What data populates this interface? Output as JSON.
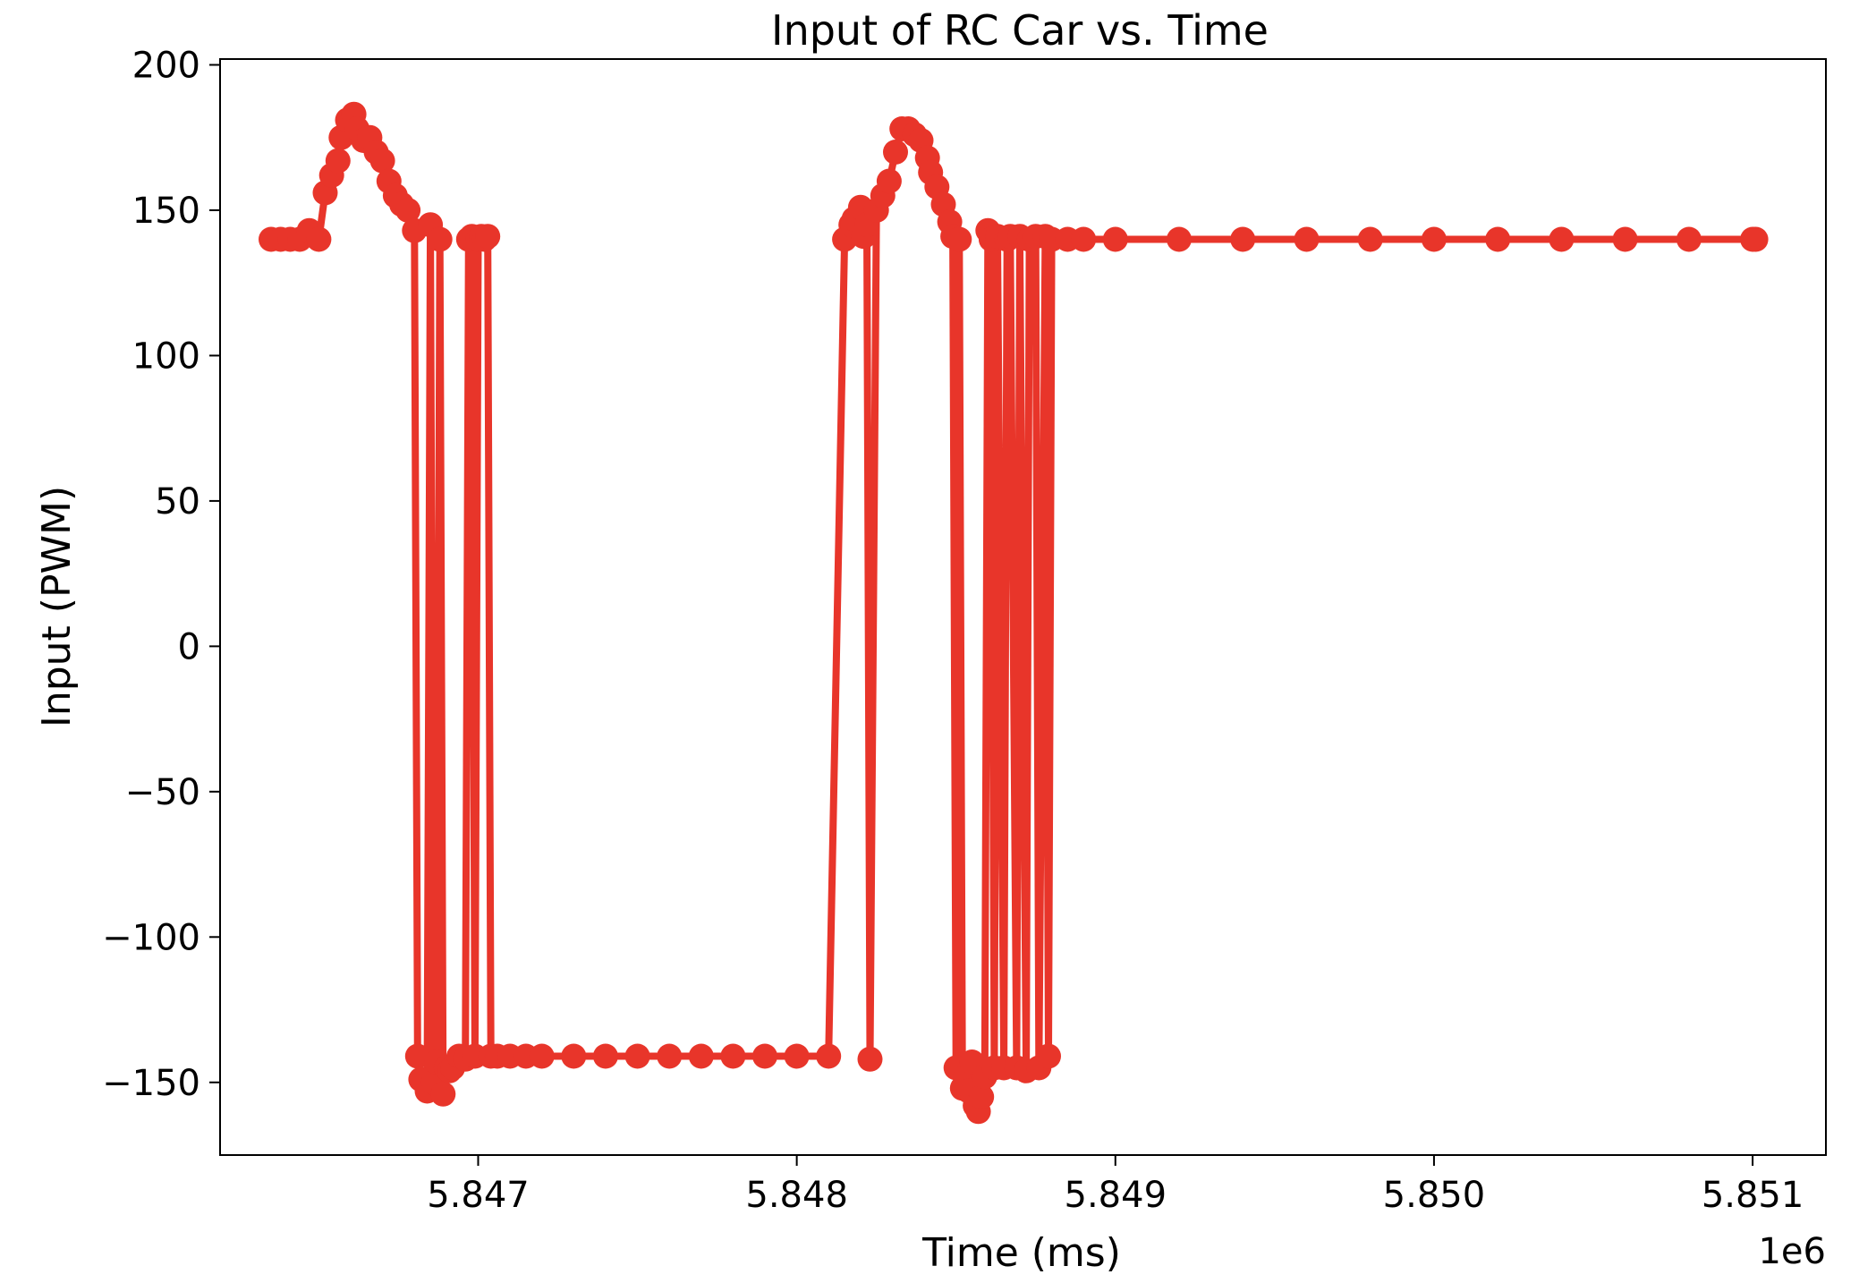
{
  "chart_data": {
    "type": "line",
    "title": "Input of RC Car vs. Time",
    "xlabel": "Time (ms)",
    "ylabel": "Input (PWM)",
    "x_offset_label": "1e6",
    "xlim": [
      5846190,
      5851230
    ],
    "ylim": [
      -175,
      202
    ],
    "x_ticks": [
      {
        "value": 5847000,
        "label": "5.847"
      },
      {
        "value": 5848000,
        "label": "5.848"
      },
      {
        "value": 5849000,
        "label": "5.849"
      },
      {
        "value": 5850000,
        "label": "5.850"
      },
      {
        "value": 5851000,
        "label": "5.851"
      }
    ],
    "y_ticks": [
      {
        "value": 200,
        "label": "200"
      },
      {
        "value": 150,
        "label": "150"
      },
      {
        "value": 100,
        "label": "100"
      },
      {
        "value": 50,
        "label": "50"
      },
      {
        "value": 0,
        "label": "0"
      },
      {
        "value": -50,
        "label": "−50"
      },
      {
        "value": -100,
        "label": "−100"
      },
      {
        "value": -150,
        "label": "−150"
      }
    ],
    "grid": false,
    "legend": "none",
    "series": [
      {
        "color": "#e8352a",
        "marker": "circle",
        "x": [
          5846350,
          5846380,
          5846410,
          5846440,
          5846470,
          5846500,
          5846520,
          5846540,
          5846560,
          5846570,
          5846590,
          5846610,
          5846620,
          5846640,
          5846660,
          5846680,
          5846700,
          5846720,
          5846740,
          5846760,
          5846780,
          5846800,
          5846810,
          5846820,
          5846840,
          5846850,
          5846860,
          5846870,
          5846880,
          5846890,
          5846900,
          5846910,
          5846920,
          5846940,
          5846960,
          5846970,
          5846980,
          5846990,
          5847000,
          5847010,
          5847020,
          5847030,
          5847040,
          5847060,
          5847100,
          5847150,
          5847200,
          5847300,
          5847400,
          5847500,
          5847600,
          5847700,
          5847800,
          5847900,
          5848000,
          5848100,
          5848150,
          5848170,
          5848180,
          5848200,
          5848210,
          5848220,
          5848230,
          5848250,
          5848270,
          5848290,
          5848310,
          5848330,
          5848350,
          5848370,
          5848390,
          5848410,
          5848420,
          5848440,
          5848460,
          5848480,
          5848490,
          5848500,
          5848510,
          5848520,
          5848530,
          5848540,
          5848550,
          5848560,
          5848570,
          5848580,
          5848590,
          5848600,
          5848610,
          5848620,
          5848630,
          5848650,
          5848660,
          5848670,
          5848690,
          5848700,
          5848720,
          5848730,
          5848750,
          5848760,
          5848780,
          5848790,
          5848800,
          5848850,
          5848900,
          5849000,
          5849200,
          5849400,
          5849600,
          5849800,
          5850000,
          5850200,
          5850400,
          5850600,
          5850800,
          5851000,
          5851010
        ],
        "y": [
          140,
          140,
          140,
          140,
          143,
          140,
          156,
          162,
          167,
          175,
          181,
          183,
          178,
          174,
          175,
          170,
          167,
          160,
          155,
          152,
          150,
          143,
          -141,
          -149,
          -153,
          145,
          -150,
          -143,
          140,
          -154,
          -145,
          -146,
          -145,
          -141,
          -142,
          140,
          141,
          -141,
          140,
          141,
          140,
          141,
          -141,
          -141,
          -141,
          -141,
          -141,
          -141,
          -141,
          -141,
          -141,
          -141,
          -141,
          -141,
          -141,
          -141,
          140,
          145,
          147,
          151,
          141,
          145,
          -142,
          150,
          155,
          160,
          170,
          178,
          178,
          176,
          174,
          168,
          163,
          158,
          152,
          146,
          141,
          -145,
          140,
          -152,
          -148,
          -153,
          -143,
          -158,
          -160,
          -155,
          -148,
          143,
          140,
          -145,
          141,
          -145,
          140,
          141,
          -145,
          141,
          -146,
          140,
          141,
          -145,
          141,
          -141,
          140,
          140,
          140,
          140,
          140,
          140,
          140,
          140,
          140,
          140,
          140,
          140,
          140,
          140,
          140
        ]
      }
    ]
  }
}
